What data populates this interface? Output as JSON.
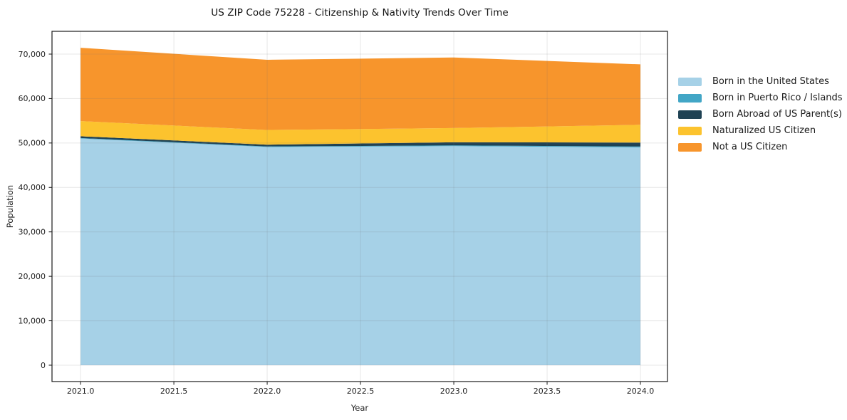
{
  "chart": {
    "title": "US ZIP Code 75228 - Citizenship & Nativity Trends Over Time",
    "xlabel": "Year",
    "ylabel": "Population"
  },
  "chart_data": {
    "type": "area",
    "stacked": true,
    "title": "US ZIP Code 75228 - Citizenship & Nativity Trends Over Time",
    "xlabel": "Year",
    "ylabel": "Population",
    "x": [
      2021,
      2022,
      2023,
      2024
    ],
    "series": [
      {
        "name": "Born in the United States",
        "color": "#A6D1E7",
        "values": [
          51000,
          49100,
          49300,
          49000
        ]
      },
      {
        "name": "Born in Puerto Rico / Islands",
        "color": "#42A6C6",
        "values": [
          120,
          120,
          150,
          200
        ]
      },
      {
        "name": "Born Abroad of US Parent(s)",
        "color": "#1F4254",
        "values": [
          400,
          400,
          700,
          900
        ]
      },
      {
        "name": "Naturalized US Citizen",
        "color": "#FCC32E",
        "values": [
          3400,
          3300,
          3200,
          4000
        ]
      },
      {
        "name": "Not a US Citizen",
        "color": "#F7952C",
        "values": [
          16500,
          15800,
          15900,
          13600
        ]
      }
    ],
    "stack_totals": [
      71420,
      68720,
      69250,
      67700
    ],
    "xticks": {
      "values": [
        2021.0,
        2021.5,
        2022.0,
        2022.5,
        2023.0,
        2023.5,
        2024.0
      ],
      "labels": [
        "2021.0",
        "2021.5",
        "2022.0",
        "2022.5",
        "2023.0",
        "2023.5",
        "2024.0"
      ]
    },
    "yticks": {
      "values": [
        0,
        10000,
        20000,
        30000,
        40000,
        50000,
        60000,
        70000
      ],
      "labels": [
        "0",
        "10,000",
        "20,000",
        "30,000",
        "40,000",
        "50,000",
        "60,000",
        "70,000"
      ]
    },
    "xlim": [
      2020.847,
      2024.145
    ],
    "ylim": [
      -3684,
      75125
    ],
    "grid": true,
    "legend_position": "right",
    "colors": {
      "spine": "#1a1a1a",
      "grid": "rgba(110,110,110,0.17)",
      "plot_bg": "#ffffff",
      "tick": "#1a1a1a"
    }
  }
}
